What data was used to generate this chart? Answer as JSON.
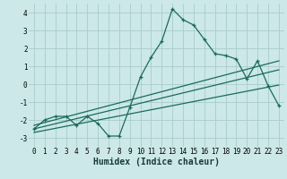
{
  "title": "",
  "xlabel": "Humidex (Indice chaleur)",
  "ylabel": "",
  "bg_color": "#cce8e8",
  "grid_color": "#aacccc",
  "line_color": "#1a6b5a",
  "xlim": [
    -0.5,
    23.5
  ],
  "ylim": [
    -3.5,
    4.5
  ],
  "xticks": [
    0,
    1,
    2,
    3,
    4,
    5,
    6,
    7,
    8,
    9,
    10,
    11,
    12,
    13,
    14,
    15,
    16,
    17,
    18,
    19,
    20,
    21,
    22,
    23
  ],
  "yticks": [
    -3,
    -2,
    -1,
    0,
    1,
    2,
    3,
    4
  ],
  "main_x": [
    0,
    1,
    2,
    3,
    4,
    5,
    6,
    7,
    8,
    9,
    10,
    11,
    12,
    13,
    14,
    15,
    16,
    17,
    18,
    19,
    20,
    21,
    22,
    23
  ],
  "main_y": [
    -2.5,
    -2.0,
    -1.8,
    -1.8,
    -2.3,
    -1.8,
    -2.2,
    -2.9,
    -2.9,
    -1.3,
    0.4,
    1.5,
    2.4,
    4.2,
    3.6,
    3.3,
    2.5,
    1.7,
    1.6,
    1.4,
    0.3,
    1.3,
    -0.1,
    -1.2
  ],
  "line1_x": [
    0,
    23
  ],
  "line1_y": [
    -2.3,
    1.3
  ],
  "line2_x": [
    0,
    23
  ],
  "line2_y": [
    -2.5,
    0.8
  ],
  "line3_x": [
    0,
    23
  ],
  "line3_y": [
    -2.7,
    -0.05
  ],
  "tick_fontsize": 5.5,
  "xlabel_fontsize": 7
}
